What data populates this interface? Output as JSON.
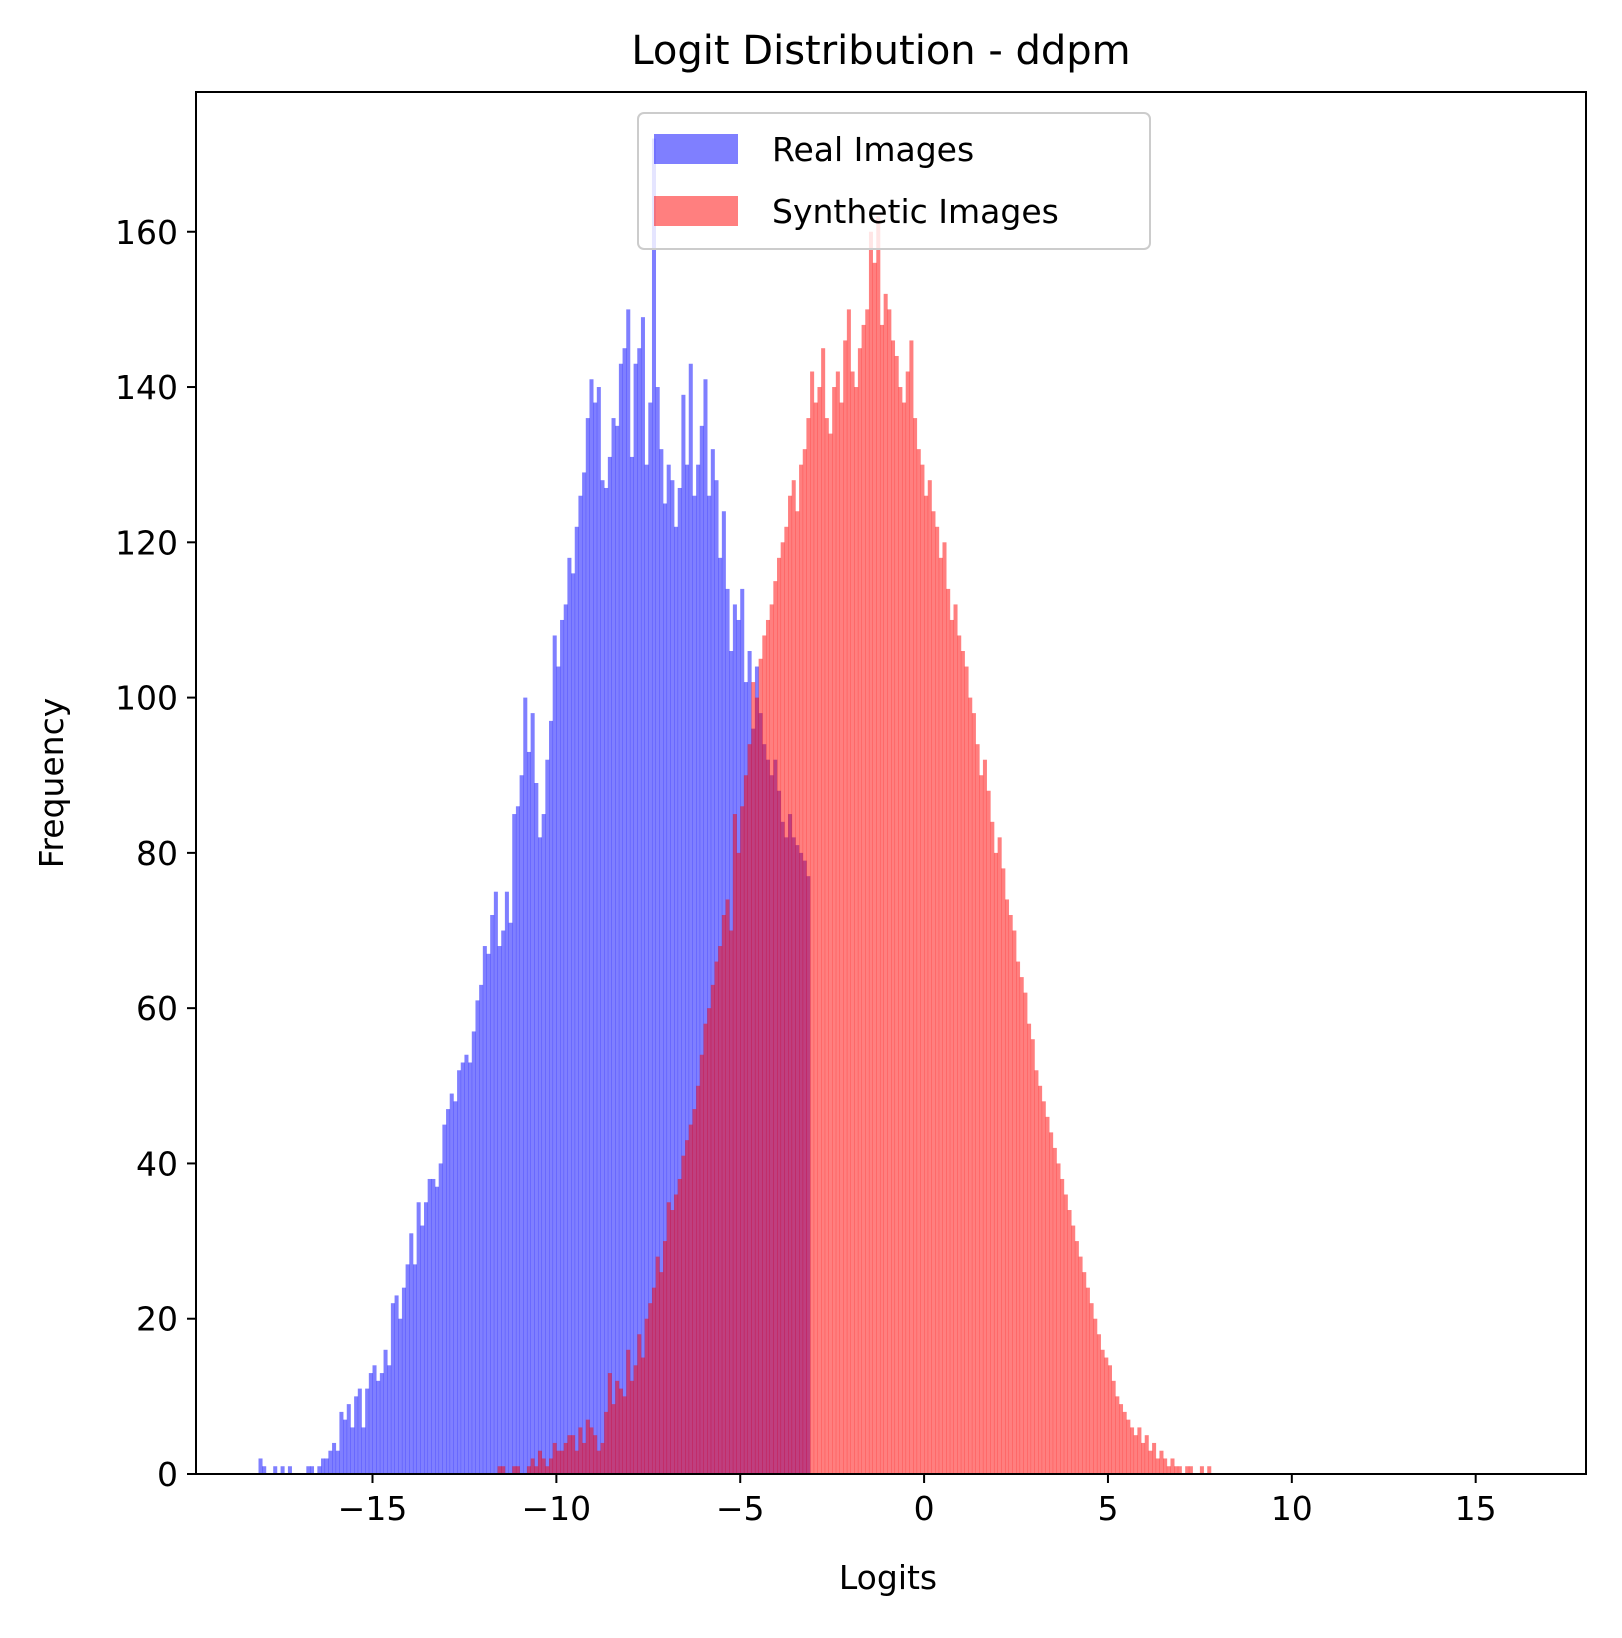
{
  "chart_data": {
    "type": "histogram",
    "title": "Logit Distribution - ddpm",
    "xlabel": "Logits",
    "ylabel": "Frequency",
    "xlim": [
      -19.8,
      18.0
    ],
    "ylim": [
      0,
      178
    ],
    "xticks": [
      -15,
      -10,
      -5,
      0,
      5,
      10,
      15
    ],
    "xtick_labels": [
      "−15",
      "−10",
      "−5",
      "0",
      "5",
      "10",
      "15"
    ],
    "yticks": [
      0,
      20,
      40,
      60,
      80,
      100,
      120,
      140,
      160
    ],
    "ytick_labels": [
      "0",
      "20",
      "40",
      "60",
      "80",
      "100",
      "120",
      "140",
      "160"
    ],
    "legend_position": "top-center",
    "grid": false,
    "series": [
      {
        "name": "Real Images",
        "color": "#0000ff",
        "alpha": 0.5,
        "bin_start": -18.1,
        "bin_width": 0.1,
        "counts": [
          2,
          1,
          0,
          0,
          1,
          0,
          1,
          0,
          1,
          0,
          0,
          0,
          0,
          1,
          1,
          0,
          1,
          2,
          2,
          3,
          4,
          3,
          8,
          7,
          9,
          6,
          10,
          11,
          6,
          11,
          13,
          14,
          12,
          13,
          16,
          14,
          22,
          23,
          20,
          24,
          27,
          31,
          27,
          35,
          32,
          35,
          38,
          38,
          37,
          40,
          45,
          47,
          49,
          48,
          52,
          53,
          54,
          53,
          57,
          61,
          63,
          68,
          67,
          72,
          75,
          68,
          70,
          75,
          71,
          85,
          86,
          90,
          100,
          93,
          98,
          89,
          82,
          85,
          92,
          97,
          108,
          104,
          110,
          112,
          118,
          116,
          122,
          126,
          129,
          136,
          141,
          138,
          140,
          128,
          127,
          131,
          136,
          135,
          143,
          145,
          150,
          131,
          143,
          145,
          149,
          130,
          138,
          172,
          140,
          132,
          125,
          130,
          128,
          122,
          127,
          139,
          130,
          143,
          126,
          130,
          135,
          141,
          126,
          132,
          128,
          118,
          124,
          114,
          106,
          112,
          110,
          114,
          102,
          106,
          96,
          104,
          98,
          94,
          92,
          90,
          92,
          88,
          84,
          82,
          85,
          82,
          81,
          80,
          79,
          77
        ]
      },
      {
        "name": "Synthetic Images",
        "color": "#ff0000",
        "alpha": 0.5,
        "bin_start": -11.6,
        "bin_width": 0.1,
        "counts": [
          1,
          1,
          0,
          0,
          1,
          1,
          0,
          0,
          1,
          2,
          1,
          3,
          2,
          1,
          2,
          4,
          3,
          3,
          4,
          5,
          5,
          3,
          6,
          4,
          7,
          6,
          5,
          3,
          4,
          8,
          13,
          9,
          12,
          11,
          10,
          16,
          12,
          14,
          18,
          15,
          20,
          22,
          24,
          28,
          26,
          30,
          35,
          34,
          36,
          38,
          41,
          43,
          45,
          47,
          50,
          54,
          58,
          60,
          63,
          66,
          68,
          72,
          74,
          70,
          85,
          80,
          86,
          90,
          94,
          102,
          100,
          105,
          108,
          110,
          112,
          115,
          118,
          120,
          122,
          126,
          128,
          124,
          130,
          132,
          136,
          142,
          138,
          140,
          145,
          136,
          134,
          140,
          142,
          138,
          146,
          150,
          142,
          140,
          145,
          148,
          150,
          160,
          156,
          162,
          148,
          152,
          150,
          146,
          144,
          140,
          138,
          142,
          146,
          136,
          132,
          130,
          126,
          128,
          124,
          122,
          118,
          120,
          114,
          110,
          112,
          108,
          106,
          104,
          100,
          98,
          94,
          90,
          92,
          88,
          84,
          80,
          82,
          78,
          74,
          72,
          70,
          66,
          64,
          62,
          58,
          56,
          52,
          50,
          48,
          46,
          44,
          42,
          40,
          38,
          36,
          34,
          32,
          30,
          28,
          26,
          24,
          22,
          20,
          18,
          16,
          15,
          14,
          12,
          10,
          9,
          8,
          7,
          6,
          5,
          6,
          4,
          5,
          3,
          4,
          2,
          3,
          2,
          1,
          2,
          1,
          1,
          0,
          1,
          1,
          0,
          0,
          1,
          0,
          1
        ]
      }
    ]
  }
}
